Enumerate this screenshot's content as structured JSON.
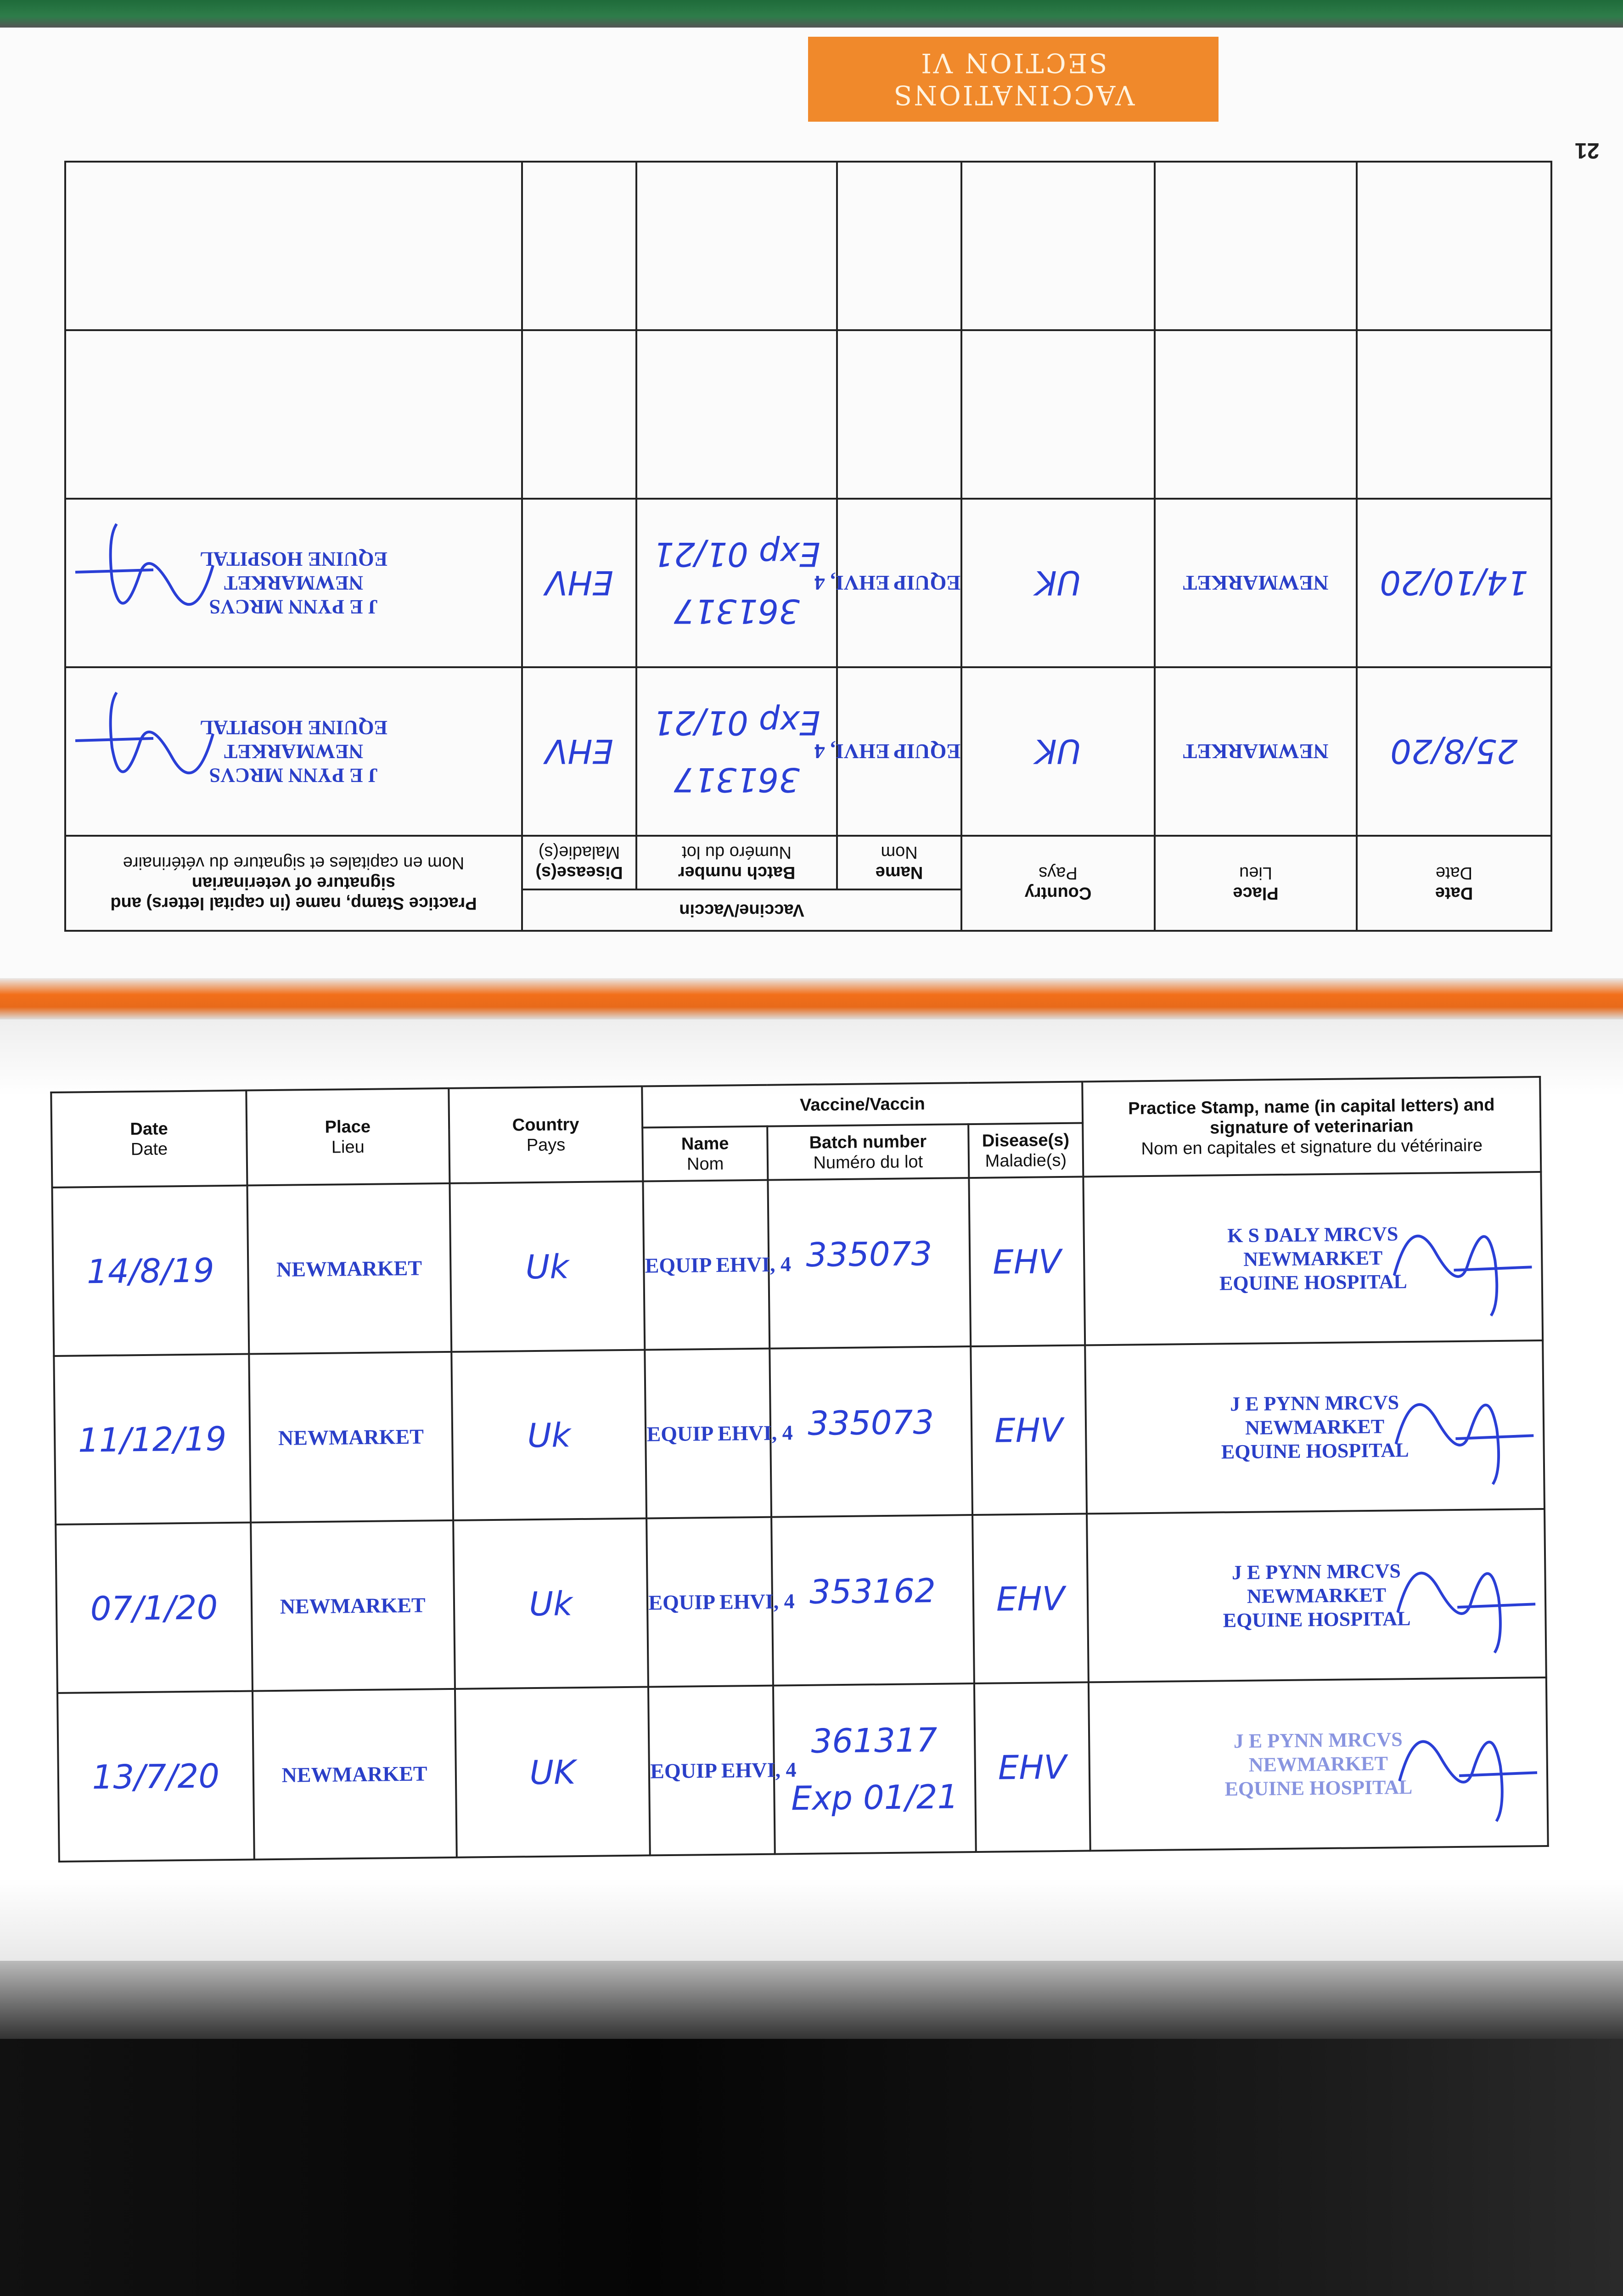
{
  "section": {
    "line1": "VACCINATIONS",
    "line2": "SECTION VI"
  },
  "page_number": "21",
  "headers": {
    "date": "Date",
    "date_fr": "Date",
    "place": "Place",
    "place_fr": "Lieu",
    "country": "Country",
    "country_fr": "Pays",
    "vaccine": "Vaccine/Vaccin",
    "name": "Name",
    "name_fr": "Nom",
    "batch": "Batch number",
    "batch_fr": "Numéro du lot",
    "disease": "Disease(s)",
    "disease_fr": "Maladie(s)",
    "stamp": "Practice Stamp, name (in capital letters) and signature of veterinarian",
    "stamp_fr": "Nom en capitales et signature du vétérinaire"
  },
  "upper_page": {
    "rows": [
      {
        "date": "25/8/20",
        "place": "NEWMARKET",
        "country": "UK",
        "name": "EQUIP EHVI, 4",
        "batch": "361317",
        "expiry": "Exp 01/21",
        "disease": "EHV",
        "stamp": [
          "J E PYNN MRCVS",
          "NEWMARKET",
          "EQUINE HOSPITAL"
        ]
      },
      {
        "date": "14/10/20",
        "place": "NEWMARKET",
        "country": "UK",
        "name": "EQUIP EHVI, 4",
        "batch": "361317",
        "expiry": "Exp 01/21",
        "disease": "EHV",
        "stamp": [
          "J E PYNN MRCVS",
          "NEWMARKET",
          "EQUINE HOSPITAL"
        ]
      },
      {
        "date": "",
        "place": "",
        "country": "",
        "name": "",
        "batch": "",
        "expiry": "",
        "disease": "",
        "stamp": []
      },
      {
        "date": "",
        "place": "",
        "country": "",
        "name": "",
        "batch": "",
        "expiry": "",
        "disease": "",
        "stamp": []
      }
    ]
  },
  "lower_page": {
    "rows": [
      {
        "date": "14/8/19",
        "place": "NEWMARKET",
        "country": "Uk",
        "name": "EQUIP EHVI, 4",
        "batch": "335073",
        "expiry": "",
        "disease": "EHV",
        "stamp": [
          "K S DALY MRCVS",
          "NEWMARKET",
          "EQUINE HOSPITAL"
        ]
      },
      {
        "date": "11/12/19",
        "place": "NEWMARKET",
        "country": "Uk",
        "name": "EQUIP EHVI, 4",
        "batch": "335073",
        "expiry": "",
        "disease": "EHV",
        "stamp": [
          "J E PYNN MRCVS",
          "NEWMARKET",
          "EQUINE HOSPITAL"
        ]
      },
      {
        "date": "07/1/20",
        "place": "NEWMARKET",
        "country": "Uk",
        "name": "EQUIP EHVI, 4",
        "batch": "353162",
        "expiry": "",
        "disease": "EHV",
        "stamp": [
          "J E PYNN MRCVS",
          "NEWMARKET",
          "EQUINE HOSPITAL"
        ]
      },
      {
        "date": "13/7/20",
        "place": "NEWMARKET",
        "country": "UK",
        "name": "EQUIP EHVI, 4",
        "batch": "361317",
        "expiry": "Exp 01/21",
        "disease": "EHV",
        "stamp": [
          "J E PYNN MRCVS",
          "NEWMARKET",
          "EQUINE HOSPITAL"
        ]
      }
    ]
  },
  "colors": {
    "ink": "#2a3fd6",
    "orange": "#f0892b"
  }
}
